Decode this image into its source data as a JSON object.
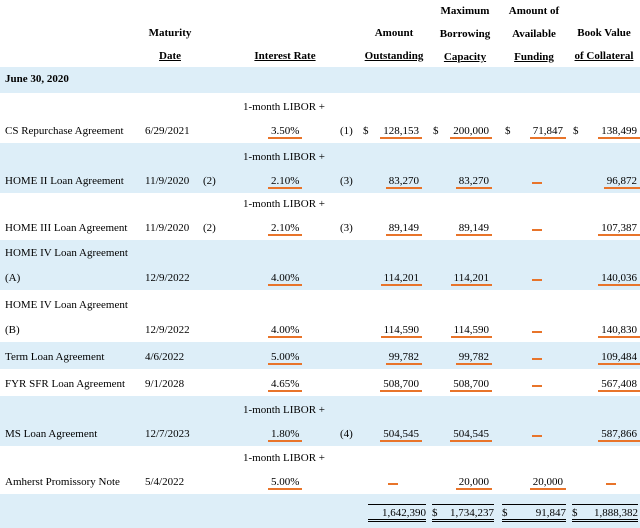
{
  "header": {
    "maturity_l1": "Maturity",
    "maturity_l2": "Date",
    "interest": "Interest Rate",
    "amount_l1": "Amount",
    "amount_l2": "Outstanding",
    "maxborrow_l1": "Maximum",
    "maxborrow_l2": "Borrowing",
    "maxborrow_l3": "Capacity",
    "available_l1": "Amount of",
    "available_l2": "Available",
    "available_l3": "Funding",
    "book_l1": "Book Value",
    "book_l2": "of Collateral"
  },
  "section_label": "June 30, 2020",
  "dollar": "$",
  "libor_label": "1-month LIBOR +",
  "rows": [
    {
      "name": "CS Repurchase Agreement",
      "date": "6/29/2021",
      "note_date": "",
      "libor": true,
      "rate": "3.50%",
      "note_rate": "(1)",
      "amount": "128,153",
      "capacity": "200,000",
      "available": "71,847",
      "book": "138,499",
      "dollars": true
    },
    {
      "name": "HOME II Loan Agreement",
      "date": "11/9/2020",
      "note_date": "(2)",
      "libor": true,
      "rate": "2.10%",
      "note_rate": "(3)",
      "amount": "83,270",
      "capacity": "83,270",
      "available": "—",
      "book": "96,872"
    },
    {
      "name": "HOME III Loan Agreement",
      "date": "11/9/2020",
      "note_date": "(2)",
      "libor": true,
      "rate": "2.10%",
      "note_rate": "(3)",
      "amount": "89,149",
      "capacity": "89,149",
      "available": "—",
      "book": "107,387"
    },
    {
      "name_l1": "HOME IV Loan Agreement",
      "name_l2": "(A)",
      "date": "12/9/2022",
      "rate": "4.00%",
      "amount": "114,201",
      "capacity": "114,201",
      "available": "—",
      "book": "140,036"
    },
    {
      "name_l1": "HOME IV Loan Agreement",
      "name_l2": "(B)",
      "date": "12/9/2022",
      "rate": "4.00%",
      "amount": "114,590",
      "capacity": "114,590",
      "available": "—",
      "book": "140,830"
    },
    {
      "name": "Term Loan Agreement",
      "date": "4/6/2022",
      "rate": "5.00%",
      "amount": "99,782",
      "capacity": "99,782",
      "available": "—",
      "book": "109,484"
    },
    {
      "name": "FYR SFR Loan Agreement",
      "date": "9/1/2028",
      "rate": "4.65%",
      "amount": "508,700",
      "capacity": "508,700",
      "available": "—",
      "book": "567,408"
    },
    {
      "name": "MS Loan Agreement",
      "date": "12/7/2023",
      "libor": true,
      "rate": "1.80%",
      "note_rate": "(4)",
      "amount": "504,545",
      "capacity": "504,545",
      "available": "—",
      "book": "587,866"
    },
    {
      "name": "Amherst Promissory Note",
      "date": "5/4/2022",
      "libor": true,
      "rate": "5.00%",
      "amount": "—",
      "capacity": "20,000",
      "available": "20,000",
      "book": "—"
    }
  ],
  "totals": {
    "amount": "1,642,390",
    "capacity": "1,734,237",
    "available": "91,847",
    "book": "1,888,382"
  },
  "accent_color": "#e8742a",
  "band_color": "#ddeef8"
}
